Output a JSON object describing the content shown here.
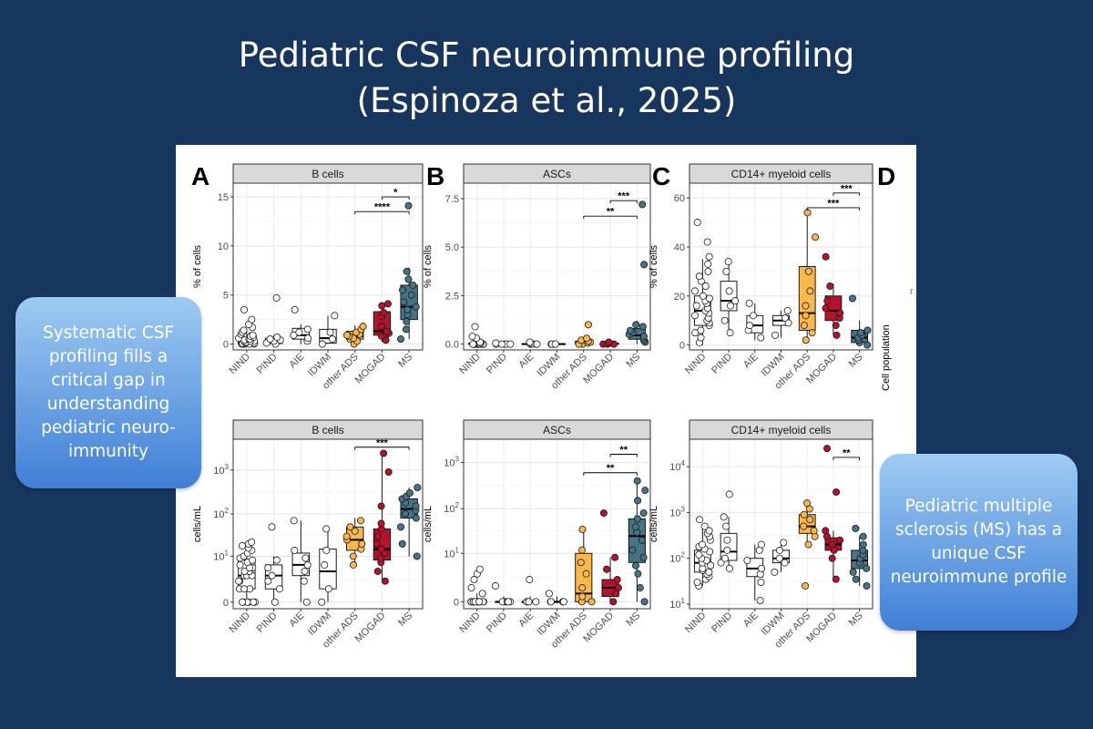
{
  "slide": {
    "title_line1": "Pediatric CSF neuroimmune profiling",
    "title_line2": "(Espinoza et al., 2025)"
  },
  "callouts": {
    "left_text": "Systematic CSF profiling fills a critical gap in understanding pediatric neuro-immunity",
    "right_text": "Pediatric multiple sclerosis (MS) has a unique CSF neuroimmune profile"
  },
  "figure": {
    "panel_letter_a": "A",
    "panel_letter_b": "B",
    "panel_letter_c": "C",
    "panel_letter_d": "D",
    "panel_d_label": "Cell population",
    "panel_d_stray": "r"
  },
  "colors": {
    "background": "#17365d",
    "group_white": "#ffffff",
    "other_ads": "#f9b84c",
    "mogad": "#b5122b",
    "ms": "#457486",
    "facet_strip": "#d9d9d9",
    "callout_top": "#9ecbf2",
    "callout_bottom": "#3f7fd6"
  },
  "chart_data": [
    {
      "id": "bcells_pct",
      "type": "box",
      "title": "B cells",
      "ylabel": "% of cells",
      "categories": [
        "NIND",
        "PIND",
        "AIE",
        "IDWM",
        "other ADS",
        "MOGAD",
        "MS"
      ],
      "yscale": "linear",
      "ylim": [
        -0.6,
        16.4
      ],
      "yticks": [
        0,
        5,
        10,
        15
      ],
      "ytick_labels": [
        "0",
        "5",
        "10",
        "15"
      ],
      "series": [
        {
          "q1": 0.0,
          "median": 0.3,
          "q3": 0.6,
          "wlo": 0,
          "whi": 1.5,
          "points": [
            0,
            0,
            0,
            0,
            0,
            0.05,
            0.1,
            0.1,
            0.2,
            0.2,
            0.3,
            0.3,
            0.4,
            0.5,
            0.5,
            0.6,
            0.7,
            0.8,
            0.9,
            1.0,
            1.2,
            1.4,
            1.7,
            2.0,
            2.5,
            3.5
          ]
        },
        {
          "q1": 0.05,
          "median": 0.35,
          "q3": 0.6,
          "wlo": 0,
          "whi": 0.9,
          "points": [
            0,
            0.1,
            0.3,
            0.4,
            0.5,
            0.7,
            4.7
          ]
        },
        {
          "q1": 0.5,
          "median": 0.9,
          "q3": 1.6,
          "wlo": 0,
          "whi": 2.0,
          "points": [
            0.3,
            0.6,
            0.9,
            1.2,
            1.5,
            3.5
          ]
        },
        {
          "q1": 0.1,
          "median": 0.6,
          "q3": 1.5,
          "wlo": 0,
          "whi": 2.9,
          "points": [
            0,
            0.5,
            1.2,
            2.9
          ]
        },
        {
          "q1": 0.5,
          "median": 0.8,
          "q3": 1.3,
          "wlo": 0,
          "whi": 1.9,
          "points": [
            0,
            0.3,
            0.5,
            0.6,
            0.8,
            0.9,
            1.0,
            1.2,
            1.5,
            1.8
          ]
        },
        {
          "q1": 0.9,
          "median": 1.3,
          "q3": 3.3,
          "wlo": 0.2,
          "whi": 4.0,
          "points": [
            0.4,
            0.8,
            1.0,
            1.1,
            1.3,
            1.8,
            2.8,
            3.2,
            3.9,
            4.1
          ]
        },
        {
          "q1": 2.5,
          "median": 3.8,
          "q3": 6.0,
          "wlo": 0.5,
          "whi": 7.8,
          "points": [
            0.5,
            1.5,
            2.3,
            3.0,
            3.5,
            3.8,
            4.3,
            5.0,
            5.5,
            6.0,
            6.6,
            7.4,
            14.1
          ]
        }
      ],
      "brackets": [
        {
          "from": "other ADS",
          "to": "MS",
          "y": 13.5,
          "label": "****"
        },
        {
          "from": "MOGAD",
          "to": "MS",
          "y": 15.0,
          "label": "*"
        }
      ]
    },
    {
      "id": "ascs_pct",
      "type": "box",
      "title": "ASCs",
      "ylabel": "% of cells",
      "categories": [
        "NIND",
        "PIND",
        "AIE",
        "IDWM",
        "other ADS",
        "MOGAD",
        "MS"
      ],
      "yscale": "linear",
      "ylim": [
        -0.3,
        8.3
      ],
      "yticks": [
        0,
        2.5,
        5,
        7.5
      ],
      "ytick_labels": [
        "0.0",
        "2.5",
        "5.0",
        "7.5"
      ],
      "series": [
        {
          "q1": 0,
          "median": 0,
          "q3": 0.05,
          "wlo": 0,
          "whi": 0.1,
          "points": [
            0,
            0,
            0,
            0,
            0,
            0,
            0,
            0,
            0,
            0,
            0,
            0,
            0.05,
            0.1,
            0.1,
            0.3,
            0.4,
            0.9
          ]
        },
        {
          "q1": 0,
          "median": 0,
          "q3": 0.02,
          "wlo": 0,
          "whi": 0.05,
          "points": [
            0,
            0,
            0,
            0,
            0,
            0.05
          ]
        },
        {
          "q1": 0,
          "median": 0,
          "q3": 0.02,
          "wlo": 0,
          "whi": 0.05,
          "points": [
            0,
            0,
            0,
            0,
            0.05,
            0.1
          ]
        },
        {
          "q1": 0,
          "median": 0,
          "q3": 0.02,
          "wlo": 0,
          "whi": 0.05,
          "points": [
            0,
            0,
            0,
            0
          ]
        },
        {
          "q1": 0,
          "median": 0.05,
          "q3": 0.15,
          "wlo": 0,
          "whi": 0.3,
          "points": [
            0,
            0,
            0.05,
            0.1,
            0.15,
            0.2,
            0.3,
            1.0
          ]
        },
        {
          "q1": 0,
          "median": 0.02,
          "q3": 0.05,
          "wlo": 0,
          "whi": 0.1,
          "points": [
            0,
            0,
            0,
            0.05,
            0.1
          ]
        },
        {
          "q1": 0.25,
          "median": 0.45,
          "q3": 0.8,
          "wlo": 0,
          "whi": 1.2,
          "points": [
            0.1,
            0.2,
            0.3,
            0.4,
            0.5,
            0.6,
            0.7,
            0.9,
            1.0,
            4.1,
            7.2
          ]
        }
      ],
      "brackets": [
        {
          "from": "other ADS",
          "to": "MS",
          "y": 6.6,
          "label": "**"
        },
        {
          "from": "MOGAD",
          "to": "MS",
          "y": 7.4,
          "label": "***"
        }
      ]
    },
    {
      "id": "cd14_pct",
      "type": "box",
      "title": "CD14+ myeloid cells",
      "ylabel": "% of cells",
      "categories": [
        "NIND",
        "PIND",
        "AIE",
        "IDWM",
        "other ADS",
        "MOGAD",
        "MS"
      ],
      "yscale": "linear",
      "ylim": [
        -2,
        66
      ],
      "yticks": [
        0,
        20,
        40,
        60
      ],
      "ytick_labels": [
        "0",
        "20",
        "40",
        "60"
      ],
      "series": [
        {
          "q1": 8,
          "median": 14,
          "q3": 20,
          "wlo": 0,
          "whi": 35,
          "points": [
            1,
            3,
            5,
            6,
            8,
            9,
            10,
            11,
            12,
            13,
            14,
            15,
            16,
            17,
            18,
            19,
            20,
            22,
            24,
            26,
            28,
            30,
            33,
            36,
            42,
            50
          ]
        },
        {
          "q1": 14,
          "median": 18,
          "q3": 26,
          "wlo": 5,
          "whi": 34,
          "points": [
            5,
            10,
            16,
            18,
            22,
            30,
            34
          ]
        },
        {
          "q1": 5,
          "median": 8,
          "q3": 12,
          "wlo": 2,
          "whi": 17,
          "points": [
            3,
            6,
            8,
            12,
            17
          ]
        },
        {
          "q1": 8,
          "median": 10,
          "q3": 12,
          "wlo": 3,
          "whi": 14,
          "points": [
            4,
            9,
            11,
            14
          ]
        },
        {
          "q1": 6,
          "median": 13,
          "q3": 32,
          "wlo": 2,
          "whi": 55,
          "points": [
            2,
            5,
            8,
            12,
            16,
            22,
            30,
            44,
            54
          ]
        },
        {
          "q1": 10,
          "median": 14,
          "q3": 20,
          "wlo": 4,
          "whi": 25,
          "points": [
            4,
            8,
            11,
            13,
            15,
            18,
            24,
            36
          ]
        },
        {
          "q1": 1,
          "median": 3,
          "q3": 6,
          "wlo": 0,
          "whi": 10,
          "points": [
            0,
            1,
            2,
            3,
            4,
            5,
            6,
            19
          ]
        }
      ],
      "brackets": [
        {
          "from": "other ADS",
          "to": "MS",
          "y": 56,
          "label": "***"
        },
        {
          "from": "MOGAD",
          "to": "MS",
          "y": 62,
          "label": "***"
        }
      ]
    },
    {
      "id": "bcells_abs",
      "type": "box",
      "title": "B cells",
      "ylabel": "cells/mL",
      "categories": [
        "NIND",
        "PIND",
        "AIE",
        "IDWM",
        "other ADS",
        "MOGAD",
        "MS"
      ],
      "yscale": "log1p",
      "ylim": [
        -0.15,
        3.7
      ],
      "yticks": [
        0,
        10,
        100,
        1000
      ],
      "ytick_labels": [
        "0",
        "10^1",
        "10^2",
        "10^3"
      ],
      "series": [
        {
          "q1": 1,
          "median": 3,
          "q3": 8,
          "wlo": 0,
          "whi": 22,
          "points": [
            0,
            0,
            0,
            0,
            0,
            0,
            1,
            1,
            1,
            2,
            2,
            3,
            3,
            3,
            4,
            4,
            5,
            5,
            6,
            7,
            8,
            9,
            10,
            12,
            14,
            16,
            18,
            20,
            22
          ]
        },
        {
          "q1": 1,
          "median": 3,
          "q3": 6,
          "wlo": 0,
          "whi": 10,
          "points": [
            0,
            1,
            2,
            3,
            5,
            8,
            50
          ]
        },
        {
          "q1": 3,
          "median": 6,
          "q3": 12,
          "wlo": 0,
          "whi": 70,
          "points": [
            0,
            2,
            4,
            6,
            9,
            14,
            70
          ]
        },
        {
          "q1": 1,
          "median": 4,
          "q3": 15,
          "wlo": 0,
          "whi": 45,
          "points": [
            0,
            1,
            6,
            14,
            45
          ]
        },
        {
          "q1": 14,
          "median": 25,
          "q3": 50,
          "wlo": 6,
          "whi": 80,
          "points": [
            6,
            10,
            15,
            20,
            25,
            30,
            40,
            50,
            70
          ]
        },
        {
          "q1": 8,
          "median": 15,
          "q3": 45,
          "wlo": 2,
          "whi": 2500,
          "points": [
            2,
            4,
            7,
            9,
            12,
            15,
            20,
            30,
            45,
            60,
            150,
            900,
            2400
          ]
        },
        {
          "q1": 80,
          "median": 130,
          "q3": 220,
          "wlo": 10,
          "whi": 400,
          "points": [
            10,
            20,
            50,
            80,
            100,
            120,
            150,
            180,
            220,
            250,
            300,
            400
          ]
        }
      ],
      "brackets": [
        {
          "from": "other ADS",
          "to": "MS",
          "y": 3300,
          "label": "***"
        }
      ]
    },
    {
      "id": "ascs_abs",
      "type": "box",
      "title": "ASCs",
      "ylabel": "cells/mL",
      "categories": [
        "NIND",
        "PIND",
        "AIE",
        "IDWM",
        "other ADS",
        "MOGAD",
        "MS"
      ],
      "yscale": "log1p",
      "ylim": [
        -0.15,
        3.5
      ],
      "yticks": [
        0,
        10,
        100,
        1000
      ],
      "ytick_labels": [
        "0",
        "10^1",
        "10^2",
        "10^3"
      ],
      "series": [
        {
          "q1": 0,
          "median": 0,
          "q3": 0,
          "wlo": 0,
          "whi": 0.5,
          "points": [
            0,
            0,
            0,
            0,
            0,
            0,
            0,
            0,
            0,
            0,
            0,
            0,
            0,
            0,
            0,
            0.5,
            1,
            2,
            3,
            4
          ]
        },
        {
          "q1": 0,
          "median": 0,
          "q3": 0,
          "wlo": 0,
          "whi": 0.3,
          "points": [
            0,
            0,
            0,
            0,
            0,
            1.2
          ]
        },
        {
          "q1": 0,
          "median": 0,
          "q3": 0,
          "wlo": 0,
          "whi": 0.3,
          "points": [
            0,
            0,
            0,
            0,
            0,
            2
          ]
        },
        {
          "q1": 0,
          "median": 0,
          "q3": 0,
          "wlo": 0,
          "whi": 0.3,
          "points": [
            0,
            0,
            0,
            0,
            0.5
          ]
        },
        {
          "q1": 0,
          "median": 0.5,
          "q3": 10,
          "wlo": 0,
          "whi": 35,
          "points": [
            0,
            0,
            0.3,
            1,
            3,
            6,
            12,
            35
          ]
        },
        {
          "q1": 0.3,
          "median": 1,
          "q3": 2,
          "wlo": 0,
          "whi": 8,
          "points": [
            0,
            0.5,
            1,
            2,
            4,
            8,
            80
          ]
        },
        {
          "q1": 6,
          "median": 25,
          "q3": 60,
          "wlo": 0,
          "whi": 400,
          "points": [
            0,
            1,
            3,
            5,
            8,
            12,
            20,
            30,
            40,
            60,
            80,
            150,
            250,
            400
          ]
        }
      ],
      "brackets": [
        {
          "from": "other ADS",
          "to": "MS",
          "y": 600,
          "label": "**"
        },
        {
          "from": "MOGAD",
          "to": "MS",
          "y": 1500,
          "label": "**"
        }
      ]
    },
    {
      "id": "cd14_abs",
      "type": "box",
      "title": "CD14+ myeloid cells",
      "ylabel": "cells/mL",
      "categories": [
        "NIND",
        "PIND",
        "AIE",
        "IDWM",
        "other ADS",
        "MOGAD",
        "MS"
      ],
      "yscale": "log10",
      "ylim": [
        0.9,
        4.6
      ],
      "yticks": [
        10,
        100,
        1000,
        10000
      ],
      "ytick_labels": [
        "10^1",
        "10^2",
        "10^3",
        "10^4"
      ],
      "series": [
        {
          "q1": 50,
          "median": 80,
          "q3": 150,
          "wlo": 25,
          "whi": 500,
          "points": [
            25,
            30,
            35,
            40,
            45,
            50,
            55,
            60,
            70,
            80,
            90,
            100,
            120,
            140,
            160,
            180,
            200,
            250,
            300,
            350,
            400,
            500,
            700
          ]
        },
        {
          "q1": 90,
          "median": 140,
          "q3": 350,
          "wlo": 60,
          "whi": 800,
          "points": [
            60,
            80,
            100,
            150,
            250,
            500,
            800,
            2500
          ]
        },
        {
          "q1": 40,
          "median": 60,
          "q3": 100,
          "wlo": 12,
          "whi": 200,
          "points": [
            12,
            30,
            45,
            60,
            90,
            150,
            200
          ]
        },
        {
          "q1": 80,
          "median": 100,
          "q3": 150,
          "wlo": 50,
          "whi": 250,
          "points": [
            50,
            80,
            100,
            150,
            220
          ]
        },
        {
          "q1": 350,
          "median": 500,
          "q3": 900,
          "wlo": 200,
          "whi": 1500,
          "points": [
            25,
            200,
            300,
            400,
            500,
            700,
            900,
            1200,
            1600
          ]
        },
        {
          "q1": 150,
          "median": 200,
          "q3": 280,
          "wlo": 35,
          "whi": 400,
          "points": [
            35,
            100,
            150,
            200,
            250,
            300,
            400,
            2800,
            25000
          ]
        },
        {
          "q1": 60,
          "median": 90,
          "q3": 150,
          "wlo": 25,
          "whi": 300,
          "points": [
            25,
            35,
            50,
            60,
            80,
            100,
            120,
            150,
            200,
            300,
            450
          ]
        }
      ],
      "brackets": [
        {
          "from": "MOGAD",
          "to": "MS",
          "y": 16000,
          "label": "**"
        }
      ]
    }
  ]
}
